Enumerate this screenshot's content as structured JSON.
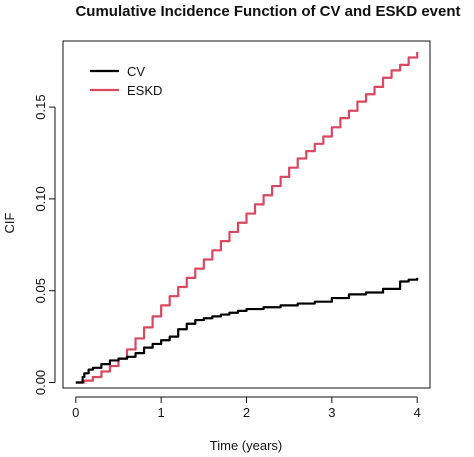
{
  "chart_data": {
    "type": "line",
    "title": "Cumulative Incidence Function of CV and ESKD event",
    "xlabel": "Time (years)",
    "ylabel": "CIF",
    "xlim": [
      -0.15,
      4.15
    ],
    "ylim": [
      -0.003,
      0.186
    ],
    "xticks": [
      0,
      1,
      2,
      3,
      4
    ],
    "xtick_labels": [
      "0",
      "1",
      "2",
      "3",
      "4"
    ],
    "yticks": [
      0.0,
      0.05,
      0.1,
      0.15
    ],
    "ytick_labels": [
      "0.00",
      "0.05",
      "0.10",
      "0.15"
    ],
    "grid": false,
    "legend_position": "top-left",
    "series": [
      {
        "name": "CV",
        "color": "#000000",
        "x": [
          0,
          0.05,
          0.08,
          0.1,
          0.15,
          0.2,
          0.3,
          0.4,
          0.5,
          0.6,
          0.7,
          0.8,
          0.9,
          1.0,
          1.1,
          1.2,
          1.3,
          1.4,
          1.5,
          1.6,
          1.7,
          1.8,
          1.9,
          2.0,
          2.2,
          2.4,
          2.6,
          2.8,
          3.0,
          3.2,
          3.4,
          3.6,
          3.8,
          3.9,
          4.0
        ],
        "y": [
          0.0,
          0.0,
          0.003,
          0.005,
          0.007,
          0.008,
          0.01,
          0.012,
          0.013,
          0.014,
          0.016,
          0.019,
          0.021,
          0.023,
          0.025,
          0.029,
          0.032,
          0.034,
          0.035,
          0.036,
          0.037,
          0.038,
          0.039,
          0.04,
          0.041,
          0.042,
          0.043,
          0.044,
          0.046,
          0.048,
          0.049,
          0.051,
          0.055,
          0.056,
          0.057
        ]
      },
      {
        "name": "ESKD",
        "color": "#d9485f",
        "x": [
          0,
          0.1,
          0.2,
          0.3,
          0.4,
          0.5,
          0.6,
          0.7,
          0.8,
          0.9,
          1.0,
          1.1,
          1.2,
          1.3,
          1.4,
          1.5,
          1.6,
          1.7,
          1.8,
          1.9,
          2.0,
          2.1,
          2.2,
          2.3,
          2.4,
          2.5,
          2.6,
          2.7,
          2.8,
          2.9,
          3.0,
          3.1,
          3.2,
          3.3,
          3.4,
          3.5,
          3.6,
          3.7,
          3.8,
          3.9,
          4.0
        ],
        "y": [
          0.0,
          0.001,
          0.003,
          0.006,
          0.009,
          0.013,
          0.018,
          0.024,
          0.03,
          0.036,
          0.042,
          0.047,
          0.052,
          0.057,
          0.062,
          0.067,
          0.072,
          0.077,
          0.082,
          0.087,
          0.092,
          0.097,
          0.102,
          0.107,
          0.112,
          0.117,
          0.122,
          0.126,
          0.13,
          0.134,
          0.139,
          0.144,
          0.148,
          0.153,
          0.157,
          0.161,
          0.166,
          0.17,
          0.173,
          0.177,
          0.18
        ]
      }
    ]
  }
}
